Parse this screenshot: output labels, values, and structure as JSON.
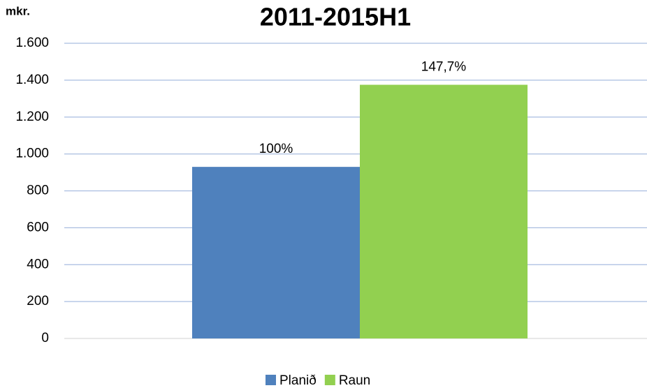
{
  "chart_data": {
    "type": "bar",
    "title": "2011-2015H1",
    "y_label": "mkr.",
    "categories": [
      null
    ],
    "series": [
      {
        "name": "Planið",
        "color": "#4f81bd",
        "values": [
          930
        ]
      },
      {
        "name": "Raun",
        "color": "#92d050",
        "values": [
          1375
        ]
      }
    ],
    "annotations": [
      "100%",
      "147,7%"
    ],
    "ylim": [
      0,
      1600
    ],
    "yticks": [
      0,
      200,
      400,
      600,
      800,
      {
        "value": 1000,
        "label": "1.000"
      },
      {
        "value": 1200,
        "label": "1.200"
      },
      {
        "value": 1400,
        "label": "1.400"
      },
      {
        "value": 1600,
        "label": "1.600"
      }
    ],
    "grid": true,
    "legend": "bottom"
  }
}
